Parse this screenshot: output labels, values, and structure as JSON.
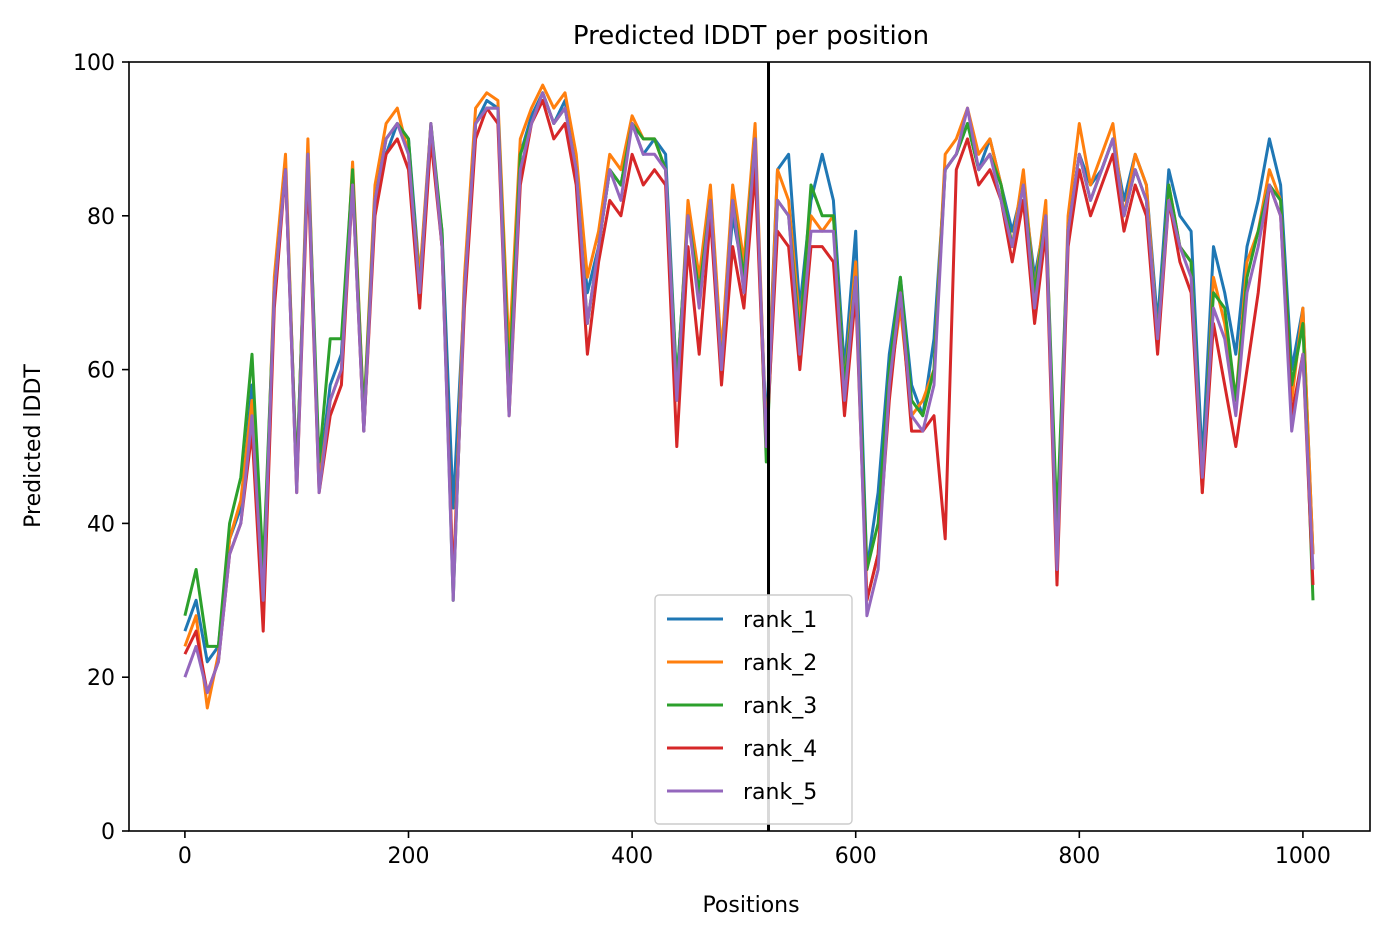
{
  "chart_data": {
    "type": "line",
    "title": "Predicted lDDT per position",
    "xlabel": "Positions",
    "ylabel": "Predicted lDDT",
    "xlim": [
      -50,
      1060
    ],
    "ylim": [
      0,
      100
    ],
    "xticks": [
      0,
      200,
      400,
      600,
      800,
      1000
    ],
    "yticks": [
      0,
      20,
      40,
      60,
      80,
      100
    ],
    "grid": false,
    "legend_position": "bottom-center",
    "vertical_line_x": 522,
    "x": [
      0,
      10,
      20,
      30,
      40,
      50,
      60,
      70,
      80,
      90,
      100,
      110,
      120,
      130,
      140,
      150,
      160,
      170,
      180,
      190,
      200,
      210,
      220,
      230,
      240,
      250,
      260,
      270,
      280,
      290,
      300,
      310,
      320,
      330,
      340,
      350,
      360,
      370,
      380,
      390,
      400,
      410,
      420,
      430,
      440,
      450,
      460,
      470,
      480,
      490,
      500,
      510,
      520,
      530,
      540,
      550,
      560,
      570,
      580,
      590,
      600,
      610,
      620,
      630,
      640,
      650,
      660,
      670,
      680,
      690,
      700,
      710,
      720,
      730,
      740,
      750,
      760,
      770,
      780,
      790,
      800,
      810,
      820,
      830,
      840,
      850,
      860,
      870,
      880,
      890,
      900,
      910,
      920,
      930,
      940,
      950,
      960,
      970,
      980,
      990,
      1000,
      1009
    ],
    "series": [
      {
        "name": "rank_1",
        "color": "#1f77b4",
        "values": [
          26,
          30,
          22,
          24,
          38,
          42,
          58,
          32,
          70,
          86,
          46,
          88,
          46,
          58,
          62,
          86,
          52,
          82,
          88,
          92,
          90,
          72,
          90,
          78,
          42,
          70,
          92,
          95,
          94,
          56,
          88,
          93,
          96,
          92,
          95,
          86,
          70,
          76,
          86,
          84,
          92,
          88,
          90,
          88,
          58,
          80,
          70,
          82,
          62,
          80,
          72,
          88,
          52,
          86,
          88,
          68,
          82,
          88,
          82,
          60,
          78,
          34,
          44,
          62,
          72,
          58,
          54,
          64,
          86,
          88,
          92,
          86,
          90,
          84,
          78,
          84,
          72,
          80,
          36,
          78,
          88,
          84,
          86,
          90,
          82,
          88,
          84,
          66,
          86,
          80,
          78,
          48,
          76,
          70,
          62,
          76,
          82,
          90,
          84,
          60,
          68,
          36
        ]
      },
      {
        "name": "rank_2",
        "color": "#ff7f0e",
        "values": [
          24,
          28,
          16,
          23,
          38,
          43,
          56,
          30,
          72,
          88,
          45,
          90,
          45,
          56,
          60,
          87,
          54,
          84,
          92,
          94,
          88,
          72,
          92,
          76,
          32,
          72,
          94,
          96,
          95,
          62,
          90,
          94,
          97,
          94,
          96,
          88,
          72,
          78,
          88,
          86,
          93,
          90,
          90,
          86,
          56,
          82,
          72,
          84,
          62,
          84,
          74,
          92,
          50,
          86,
          82,
          66,
          80,
          78,
          80,
          58,
          74,
          30,
          36,
          58,
          68,
          54,
          56,
          60,
          88,
          90,
          94,
          88,
          90,
          84,
          76,
          86,
          70,
          82,
          34,
          80,
          92,
          84,
          88,
          92,
          80,
          88,
          84,
          64,
          84,
          76,
          74,
          44,
          72,
          66,
          56,
          74,
          78,
          86,
          82,
          56,
          68,
          36
        ]
      },
      {
        "name": "rank_3",
        "color": "#2ca02c",
        "values": [
          28,
          34,
          24,
          24,
          40,
          46,
          62,
          34,
          70,
          86,
          46,
          88,
          48,
          64,
          64,
          86,
          54,
          82,
          90,
          92,
          90,
          70,
          92,
          78,
          30,
          70,
          92,
          94,
          94,
          58,
          88,
          92,
          96,
          92,
          94,
          86,
          66,
          76,
          86,
          84,
          92,
          90,
          90,
          86,
          58,
          80,
          70,
          82,
          60,
          82,
          72,
          90,
          48,
          82,
          80,
          64,
          84,
          80,
          80,
          58,
          72,
          34,
          40,
          60,
          72,
          56,
          54,
          60,
          86,
          88,
          92,
          86,
          88,
          84,
          76,
          84,
          70,
          80,
          40,
          78,
          88,
          82,
          86,
          90,
          80,
          86,
          82,
          64,
          84,
          76,
          74,
          46,
          70,
          68,
          56,
          72,
          78,
          84,
          82,
          58,
          66,
          30
        ]
      },
      {
        "name": "rank_4",
        "color": "#d62728",
        "values": [
          23,
          26,
          18,
          22,
          36,
          40,
          52,
          26,
          68,
          86,
          44,
          86,
          44,
          54,
          58,
          84,
          52,
          80,
          88,
          90,
          86,
          68,
          90,
          76,
          32,
          68,
          90,
          94,
          92,
          54,
          84,
          92,
          95,
          90,
          92,
          84,
          62,
          74,
          82,
          80,
          88,
          84,
          86,
          84,
          50,
          76,
          62,
          80,
          58,
          76,
          68,
          86,
          50,
          78,
          76,
          60,
          76,
          76,
          74,
          54,
          70,
          30,
          36,
          56,
          70,
          52,
          52,
          54,
          38,
          86,
          90,
          84,
          86,
          82,
          74,
          82,
          66,
          78,
          32,
          76,
          86,
          80,
          84,
          88,
          78,
          84,
          80,
          62,
          82,
          74,
          70,
          44,
          66,
          58,
          50,
          60,
          70,
          84,
          80,
          54,
          62,
          32
        ]
      },
      {
        "name": "rank_5",
        "color": "#9467bd",
        "values": [
          20,
          24,
          18,
          22,
          36,
          40,
          54,
          30,
          70,
          86,
          44,
          88,
          44,
          56,
          60,
          84,
          52,
          82,
          90,
          92,
          88,
          70,
          92,
          76,
          30,
          70,
          92,
          94,
          94,
          54,
          86,
          92,
          96,
          92,
          94,
          86,
          66,
          76,
          86,
          82,
          92,
          88,
          88,
          86,
          56,
          80,
          68,
          82,
          60,
          82,
          70,
          90,
          50,
          82,
          80,
          62,
          78,
          78,
          78,
          56,
          72,
          28,
          34,
          58,
          70,
          54,
          52,
          58,
          86,
          88,
          94,
          86,
          88,
          82,
          76,
          84,
          68,
          80,
          34,
          78,
          88,
          82,
          86,
          90,
          80,
          86,
          82,
          64,
          82,
          76,
          72,
          46,
          68,
          64,
          54,
          70,
          76,
          84,
          80,
          52,
          62,
          34
        ]
      }
    ]
  }
}
